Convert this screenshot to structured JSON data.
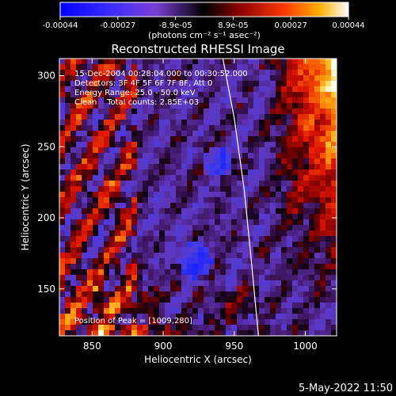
{
  "colorbar": {
    "ticks": [
      "-0.00044",
      "-0.00027",
      "-8.9e-05",
      "8.9e-05",
      "0.00027",
      "0.00044"
    ],
    "unit_label": "(photons cm⁻² s⁻¹ asec⁻²)",
    "range": [
      -0.00044,
      0.00044
    ]
  },
  "chart_data": {
    "type": "heatmap",
    "title": "Reconstructed RHESSI Image",
    "xlabel": "Heliocentric X (arcsec)",
    "ylabel": "Heliocentric Y (arcsec)",
    "xlim": [
      827,
      1022
    ],
    "ylim": [
      117,
      312
    ],
    "x_ticks": [
      850,
      900,
      950,
      1000
    ],
    "y_ticks": [
      150,
      200,
      250,
      300
    ],
    "annotations": [
      "15-Dec-2004 00:28:04.000 to 00:30:52.000",
      "Detectors: 3F 4F 5F 6F 7F 8F, Att 0",
      "Energy Range: 25.0 - 50.0 keV",
      "Clean    Total counts: 2.85E+03"
    ],
    "peak_label": "Position of Peak = [1009,280]",
    "peak": [
      1009,
      280
    ],
    "limb_curve": [
      [
        942,
        312
      ],
      [
        950,
        270
      ],
      [
        957,
        220
      ],
      [
        962,
        170
      ],
      [
        967,
        117
      ]
    ]
  },
  "timestamp": "5-May-2022 11:50",
  "colors": {
    "background": "#000000",
    "text": "#ffffff"
  }
}
